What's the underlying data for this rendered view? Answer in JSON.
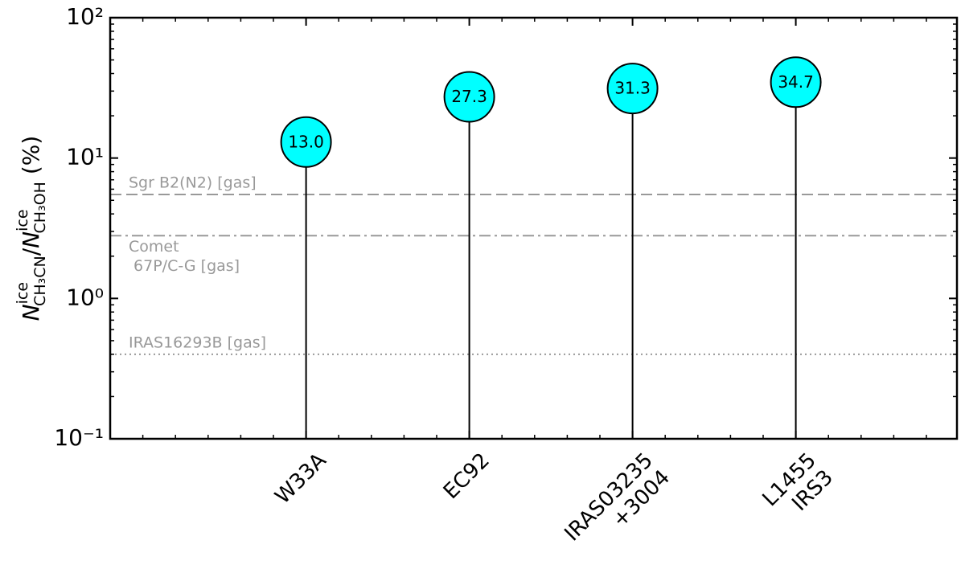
{
  "chart_data": {
    "type": "lollipop",
    "categories": [
      "W33A",
      "EC92",
      "IRAS03235\n+3004",
      "L1455\nIRS3"
    ],
    "values": [
      13.0,
      27.3,
      31.3,
      34.7
    ],
    "value_labels": [
      "13.0",
      "27.3",
      "31.3",
      "34.7"
    ],
    "color": "#00ffff",
    "log_y": true,
    "ylim": [
      0.1,
      100
    ],
    "yticks": [
      {
        "value": 0.1,
        "label": "10⁻¹"
      },
      {
        "value": 1,
        "label": "10⁰"
      },
      {
        "value": 10,
        "label": "10¹"
      },
      {
        "value": 100,
        "label": "10²"
      }
    ],
    "ylabel": {
      "n1": "N",
      "sup1": "ice",
      "sub1": "CH₃CN",
      "slash": "/",
      "n2": "N",
      "sup2": "ice",
      "sub2": "CH₃OH",
      "unit": " (%)"
    },
    "annotations": [
      {
        "text": "Sgr B2(N2) [gas]",
        "value": 5.5,
        "style": "dashed"
      },
      {
        "text": "Comet\n 67P/C-G [gas]",
        "value": 2.8,
        "style": "dashdot"
      },
      {
        "text": "IRAS16293B [gas]",
        "value": 0.4,
        "style": "dotted"
      }
    ]
  }
}
